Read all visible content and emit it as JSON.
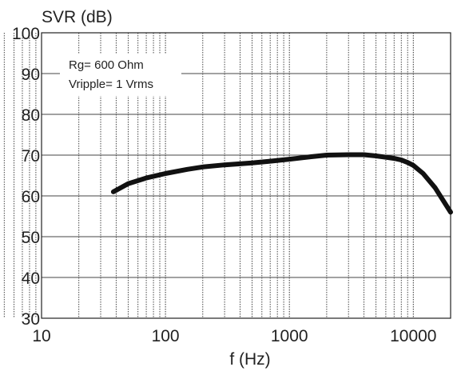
{
  "chart_data": {
    "type": "line",
    "title": "",
    "ylabel": "SVR (dB)",
    "xlabel": "f (Hz)",
    "xscale": "log",
    "xlim": [
      10,
      20000
    ],
    "ylim": [
      30,
      100
    ],
    "grid": true,
    "x_ticks": [
      10,
      100,
      1000,
      10000
    ],
    "x_tick_labels": [
      "10",
      "100",
      "1000",
      "10000"
    ],
    "y_ticks": [
      30,
      40,
      50,
      60,
      70,
      80,
      90,
      100
    ],
    "y_tick_labels": [
      "30",
      "40",
      "50",
      "60",
      "70",
      "80",
      "90",
      "100"
    ],
    "annotations": [
      "Rg= 600 Ohm",
      "Vripple= 1 Vrms"
    ],
    "series": [
      {
        "color": "#111111",
        "x": [
          38,
          50,
          70,
          100,
          150,
          200,
          300,
          500,
          700,
          1000,
          1500,
          2000,
          3000,
          4000,
          5000,
          6000,
          7000,
          8000,
          9000,
          10000,
          12000,
          15000,
          20000
        ],
        "y": [
          61,
          63,
          64.4,
          65.5,
          66.5,
          67.1,
          67.6,
          68.1,
          68.5,
          69,
          69.6,
          70,
          70.1,
          70.1,
          69.8,
          69.5,
          69.2,
          68.8,
          68.2,
          67.5,
          65.5,
          62,
          56
        ]
      }
    ]
  }
}
